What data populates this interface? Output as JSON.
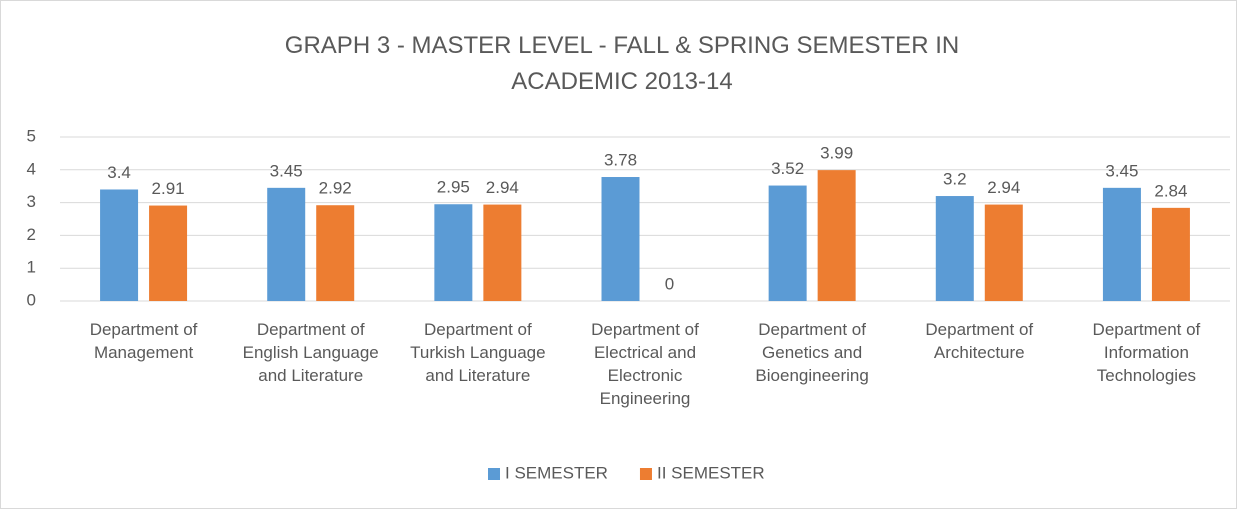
{
  "chart_data": {
    "type": "bar",
    "title": "GRAPH 3 - MASTER LEVEL - FALL & SPRING SEMESTER IN ACADEMIC 2013-14",
    "categories": [
      "Department of Management",
      "Department of English Language and Literature",
      "Department of Turkish Language and Literature",
      "Department of Electrical and Electronic Engineering",
      "Department of Genetics and Bioengineering",
      "Department of Architecture",
      "Department of Information Technologies"
    ],
    "series": [
      {
        "name": "I SEMESTER",
        "color": "#5b9bd5",
        "values": [
          3.4,
          3.45,
          2.95,
          3.78,
          3.52,
          3.2,
          3.45
        ]
      },
      {
        "name": "II SEMESTER",
        "color": "#ed7d31",
        "values": [
          2.91,
          2.92,
          2.94,
          0,
          3.99,
          2.94,
          2.84
        ]
      }
    ],
    "ylim": [
      0,
      5
    ],
    "yticks": [
      0,
      1,
      2,
      3,
      4,
      5
    ],
    "grid": true,
    "legend": "bottom"
  }
}
